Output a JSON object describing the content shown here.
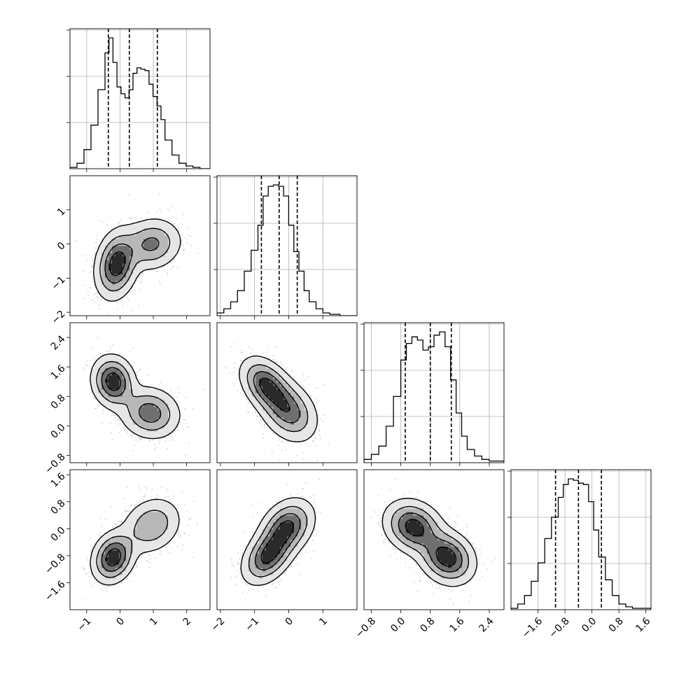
{
  "chart_data": {
    "type": "corner",
    "n_params": 4,
    "grid": true,
    "quantile_line_style": "dashed",
    "parameters": [
      {
        "index": 0,
        "range": [
          -1.5,
          2.7
        ],
        "ticks": [
          "−1",
          "0",
          "1",
          "2"
        ],
        "tick_values": [
          -1,
          0,
          1,
          2
        ],
        "quantiles": [
          -0.35,
          0.28,
          1.12
        ],
        "hist_edges": [
          -1.5,
          -1.29,
          -1.08,
          -0.87,
          -0.66,
          -0.45,
          -0.33,
          -0.21,
          -0.09,
          0.03,
          0.15,
          0.27,
          0.39,
          0.51,
          0.63,
          0.75,
          0.87,
          0.99,
          1.11,
          1.23,
          1.35,
          1.56,
          1.77,
          1.98,
          2.19,
          2.4,
          2.7
        ],
        "hist_counts": [
          0.01,
          0.04,
          0.14,
          0.32,
          0.58,
          0.85,
          0.96,
          0.78,
          0.6,
          0.55,
          0.52,
          0.58,
          0.7,
          0.74,
          0.73,
          0.72,
          0.62,
          0.53,
          0.46,
          0.36,
          0.21,
          0.1,
          0.04,
          0.02,
          0.01,
          0.0
        ]
      },
      {
        "index": 1,
        "range": [
          -2.1,
          2.0
        ],
        "ticks": [
          "−2",
          "−1",
          "0",
          "1"
        ],
        "tick_values": [
          -2,
          -1,
          0,
          1
        ],
        "quantiles": [
          -0.8,
          -0.28,
          0.25
        ],
        "hist_edges": [
          -2.1,
          -1.9,
          -1.7,
          -1.5,
          -1.3,
          -1.1,
          -0.9,
          -0.75,
          -0.6,
          -0.45,
          -0.3,
          -0.15,
          0.0,
          0.15,
          0.3,
          0.45,
          0.6,
          0.8,
          1.0,
          1.2,
          1.5,
          2.0
        ],
        "hist_counts": [
          0.02,
          0.05,
          0.1,
          0.18,
          0.32,
          0.47,
          0.65,
          0.86,
          0.93,
          0.94,
          0.93,
          0.86,
          0.65,
          0.46,
          0.32,
          0.18,
          0.1,
          0.05,
          0.02,
          0.01,
          0.0
        ]
      },
      {
        "index": 2,
        "range": [
          -1.0,
          2.8
        ],
        "ticks": [
          "−0.8",
          "0.0",
          "0.8",
          "1.6",
          "2.4"
        ],
        "tick_values": [
          -0.8,
          0.0,
          0.8,
          1.6,
          2.4
        ],
        "quantiles": [
          0.12,
          0.8,
          1.37
        ],
        "hist_edges": [
          -1.0,
          -0.8,
          -0.6,
          -0.4,
          -0.2,
          0.0,
          0.15,
          0.3,
          0.45,
          0.6,
          0.75,
          0.9,
          1.05,
          1.2,
          1.35,
          1.5,
          1.65,
          1.8,
          2.0,
          2.2,
          2.4,
          2.8
        ],
        "hist_counts": [
          0.02,
          0.05,
          0.1,
          0.22,
          0.4,
          0.62,
          0.72,
          0.76,
          0.74,
          0.68,
          0.7,
          0.77,
          0.79,
          0.7,
          0.5,
          0.3,
          0.16,
          0.08,
          0.04,
          0.02,
          0.01
        ]
      },
      {
        "index": 3,
        "range": [
          -2.4,
          1.75
        ],
        "ticks": [
          "−1.6",
          "−0.8",
          "0.0",
          "0.8",
          "1.6"
        ],
        "tick_values": [
          -1.6,
          -0.8,
          0.0,
          0.8,
          1.6
        ],
        "quantiles": [
          -1.08,
          -0.4,
          0.28
        ],
        "hist_edges": [
          -2.4,
          -2.2,
          -2.0,
          -1.8,
          -1.6,
          -1.4,
          -1.2,
          -1.0,
          -0.85,
          -0.7,
          -0.55,
          -0.4,
          -0.25,
          -0.1,
          0.05,
          0.2,
          0.4,
          0.6,
          0.8,
          1.0,
          1.2,
          1.75
        ],
        "hist_counts": [
          0.01,
          0.04,
          0.1,
          0.2,
          0.33,
          0.5,
          0.65,
          0.79,
          0.88,
          0.92,
          0.91,
          0.89,
          0.88,
          0.76,
          0.56,
          0.37,
          0.21,
          0.1,
          0.04,
          0.02,
          0.01
        ]
      }
    ],
    "hist_ytick_fractions": [
      0.33,
      0.66,
      0.99
    ],
    "pairs": [
      {
        "row": 1,
        "col": 0,
        "modes": [
          {
            "x": -0.1,
            "y": -0.6,
            "sx": 0.32,
            "sy": 0.5,
            "rho": 0.2,
            "w": 0.6
          },
          {
            "x": 0.95,
            "y": 0.0,
            "sx": 0.45,
            "sy": 0.38,
            "rho": 0.1,
            "w": 0.4
          }
        ]
      },
      {
        "row": 2,
        "col": 0,
        "modes": [
          {
            "x": -0.2,
            "y": 1.2,
            "sx": 0.32,
            "sy": 0.35,
            "rho": -0.1,
            "w": 0.5
          },
          {
            "x": 0.9,
            "y": 0.35,
            "sx": 0.45,
            "sy": 0.35,
            "rho": -0.1,
            "w": 0.5
          }
        ]
      },
      {
        "row": 2,
        "col": 1,
        "modes": [
          {
            "x": -0.65,
            "y": 1.1,
            "sx": 0.38,
            "sy": 0.38,
            "rho": -0.4,
            "w": 0.5
          },
          {
            "x": 0.0,
            "y": 0.4,
            "sx": 0.42,
            "sy": 0.42,
            "rho": -0.3,
            "w": 0.5
          }
        ]
      },
      {
        "row": 3,
        "col": 0,
        "modes": [
          {
            "x": -0.2,
            "y": -0.85,
            "sx": 0.32,
            "sy": 0.38,
            "rho": 0.2,
            "w": 0.55
          },
          {
            "x": 0.95,
            "y": 0.1,
            "sx": 0.45,
            "sy": 0.42,
            "rho": 0.2,
            "w": 0.45
          }
        ]
      },
      {
        "row": 3,
        "col": 1,
        "modes": [
          {
            "x": -0.6,
            "y": -0.8,
            "sx": 0.38,
            "sy": 0.42,
            "rho": 0.4,
            "w": 0.5
          },
          {
            "x": -0.05,
            "y": 0.05,
            "sx": 0.4,
            "sy": 0.42,
            "rho": 0.3,
            "w": 0.5
          }
        ]
      },
      {
        "row": 3,
        "col": 2,
        "modes": [
          {
            "x": 0.35,
            "y": 0.05,
            "sx": 0.4,
            "sy": 0.4,
            "rho": -0.2,
            "w": 0.5
          },
          {
            "x": 1.25,
            "y": -0.85,
            "sx": 0.38,
            "sy": 0.4,
            "rho": -0.2,
            "w": 0.5
          }
        ]
      }
    ]
  }
}
